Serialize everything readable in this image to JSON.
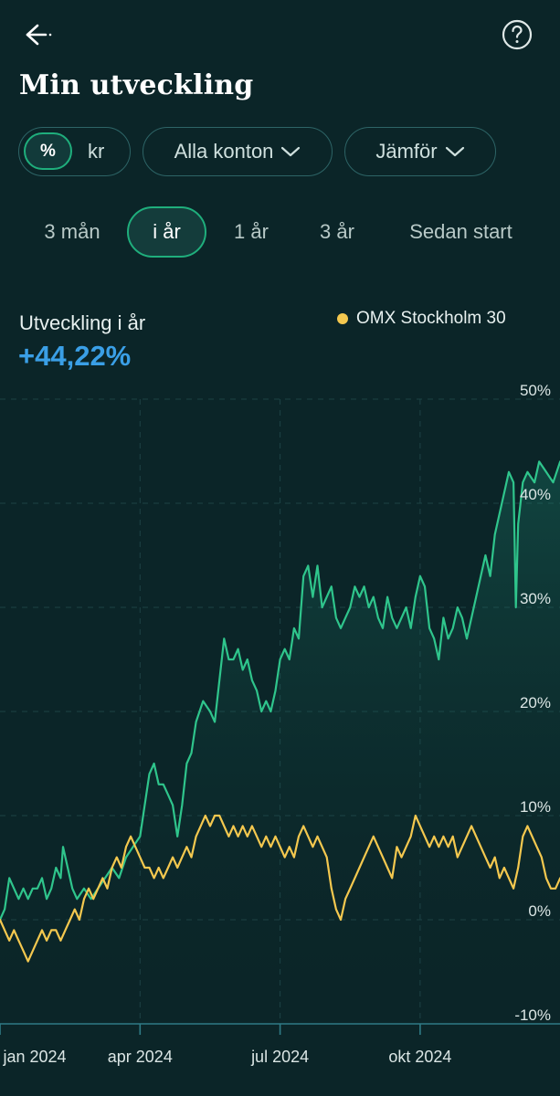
{
  "header": {
    "back_icon": "arrow-left-icon",
    "help_icon": "question-circle-icon",
    "title": "Min utveckling"
  },
  "filters": {
    "unit_toggle": {
      "options": [
        "%",
        "kr"
      ],
      "selected": "%"
    },
    "accounts_label": "Alla konton",
    "compare_label": "Jämför"
  },
  "ranges": {
    "items": [
      "3 mån",
      "i år",
      "1 år",
      "3 år",
      "Sedan start"
    ],
    "selected": "i år"
  },
  "summary": {
    "label": "Utveckling i år",
    "value": "+44,22%"
  },
  "legend": {
    "benchmark_name": "OMX Stockholm 30",
    "benchmark_color": "#f4c84f"
  },
  "colors": {
    "background": "#0b2528",
    "accent": "#1fae7c",
    "portfolio_line": "#2fc58c",
    "benchmark_line": "#f4c84f",
    "value_blue": "#3a9fe6"
  },
  "chart_data": {
    "type": "line",
    "title": "Utveckling i år",
    "ylabel": "%",
    "ylim": [
      -10,
      50
    ],
    "yticks": [
      -10,
      0,
      10,
      20,
      30,
      40,
      50
    ],
    "ytick_labels": [
      "-10%",
      "0%",
      "10%",
      "20%",
      "30%",
      "40%",
      "50%"
    ],
    "x_domain": [
      0,
      12
    ],
    "xticks": [
      {
        "month": 0,
        "label": "jan 2024"
      },
      {
        "month": 3,
        "label": "apr 2024"
      },
      {
        "month": 6,
        "label": "jul 2024"
      },
      {
        "month": 9,
        "label": "okt 2024"
      }
    ],
    "series": [
      {
        "name": "Min utveckling",
        "color": "#2fc58c",
        "points": [
          [
            0,
            0
          ],
          [
            0.1,
            1
          ],
          [
            0.2,
            4
          ],
          [
            0.3,
            3
          ],
          [
            0.4,
            2
          ],
          [
            0.5,
            3
          ],
          [
            0.6,
            2
          ],
          [
            0.7,
            3
          ],
          [
            0.8,
            3
          ],
          [
            0.9,
            4
          ],
          [
            1.0,
            2
          ],
          [
            1.1,
            3
          ],
          [
            1.2,
            5
          ],
          [
            1.3,
            4
          ],
          [
            1.35,
            7
          ],
          [
            1.45,
            5
          ],
          [
            1.55,
            3
          ],
          [
            1.65,
            2
          ],
          [
            1.8,
            3
          ],
          [
            1.95,
            2
          ],
          [
            2.1,
            3
          ],
          [
            2.25,
            4
          ],
          [
            2.4,
            5
          ],
          [
            2.55,
            4
          ],
          [
            2.7,
            6
          ],
          [
            2.85,
            7
          ],
          [
            3.0,
            8
          ],
          [
            3.1,
            11
          ],
          [
            3.2,
            14
          ],
          [
            3.3,
            15
          ],
          [
            3.4,
            13
          ],
          [
            3.5,
            13
          ],
          [
            3.6,
            12
          ],
          [
            3.7,
            11
          ],
          [
            3.8,
            8
          ],
          [
            3.9,
            11
          ],
          [
            4.0,
            15
          ],
          [
            4.1,
            16
          ],
          [
            4.2,
            19
          ],
          [
            4.35,
            21
          ],
          [
            4.5,
            20
          ],
          [
            4.6,
            19
          ],
          [
            4.7,
            23
          ],
          [
            4.8,
            27
          ],
          [
            4.9,
            25
          ],
          [
            5.0,
            25
          ],
          [
            5.1,
            26
          ],
          [
            5.2,
            24
          ],
          [
            5.3,
            25
          ],
          [
            5.4,
            23
          ],
          [
            5.5,
            22
          ],
          [
            5.6,
            20
          ],
          [
            5.7,
            21
          ],
          [
            5.8,
            20
          ],
          [
            5.9,
            22
          ],
          [
            6.0,
            25
          ],
          [
            6.1,
            26
          ],
          [
            6.2,
            25
          ],
          [
            6.3,
            28
          ],
          [
            6.4,
            27
          ],
          [
            6.5,
            33
          ],
          [
            6.6,
            34
          ],
          [
            6.7,
            31
          ],
          [
            6.8,
            34
          ],
          [
            6.9,
            30
          ],
          [
            7.0,
            31
          ],
          [
            7.1,
            32
          ],
          [
            7.2,
            29
          ],
          [
            7.3,
            28
          ],
          [
            7.4,
            29
          ],
          [
            7.5,
            30
          ],
          [
            7.6,
            32
          ],
          [
            7.7,
            31
          ],
          [
            7.8,
            32
          ],
          [
            7.9,
            30
          ],
          [
            8.0,
            31
          ],
          [
            8.1,
            29
          ],
          [
            8.2,
            28
          ],
          [
            8.3,
            31
          ],
          [
            8.4,
            29
          ],
          [
            8.5,
            28
          ],
          [
            8.6,
            29
          ],
          [
            8.7,
            30
          ],
          [
            8.8,
            28
          ],
          [
            8.9,
            31
          ],
          [
            9.0,
            33
          ],
          [
            9.1,
            32
          ],
          [
            9.2,
            28
          ],
          [
            9.3,
            27
          ],
          [
            9.4,
            25
          ],
          [
            9.5,
            29
          ],
          [
            9.6,
            27
          ],
          [
            9.7,
            28
          ],
          [
            9.8,
            30
          ],
          [
            9.9,
            29
          ],
          [
            10.0,
            27
          ],
          [
            10.1,
            29
          ],
          [
            10.2,
            31
          ],
          [
            10.3,
            33
          ],
          [
            10.4,
            35
          ],
          [
            10.5,
            33
          ],
          [
            10.6,
            37
          ],
          [
            10.7,
            39
          ],
          [
            10.8,
            41
          ],
          [
            10.9,
            43
          ],
          [
            11.0,
            42
          ],
          [
            11.05,
            30
          ],
          [
            11.1,
            38
          ],
          [
            11.2,
            42
          ],
          [
            11.3,
            43
          ],
          [
            11.45,
            42
          ],
          [
            11.55,
            44
          ],
          [
            11.7,
            43
          ],
          [
            11.85,
            42
          ],
          [
            12.0,
            44
          ]
        ]
      },
      {
        "name": "OMX Stockholm 30",
        "color": "#f4c84f",
        "points": [
          [
            0,
            0
          ],
          [
            0.1,
            -1
          ],
          [
            0.2,
            -2
          ],
          [
            0.3,
            -1
          ],
          [
            0.4,
            -2
          ],
          [
            0.5,
            -3
          ],
          [
            0.6,
            -4
          ],
          [
            0.7,
            -3
          ],
          [
            0.8,
            -2
          ],
          [
            0.9,
            -1
          ],
          [
            1.0,
            -2
          ],
          [
            1.1,
            -1
          ],
          [
            1.2,
            -1
          ],
          [
            1.3,
            -2
          ],
          [
            1.4,
            -1
          ],
          [
            1.5,
            0
          ],
          [
            1.6,
            1
          ],
          [
            1.7,
            0
          ],
          [
            1.8,
            2
          ],
          [
            1.9,
            3
          ],
          [
            2.0,
            2
          ],
          [
            2.1,
            3
          ],
          [
            2.2,
            4
          ],
          [
            2.3,
            3
          ],
          [
            2.4,
            5
          ],
          [
            2.5,
            6
          ],
          [
            2.6,
            5
          ],
          [
            2.7,
            7
          ],
          [
            2.8,
            8
          ],
          [
            2.9,
            7
          ],
          [
            3.0,
            6
          ],
          [
            3.1,
            5
          ],
          [
            3.2,
            5
          ],
          [
            3.3,
            4
          ],
          [
            3.4,
            5
          ],
          [
            3.5,
            4
          ],
          [
            3.6,
            5
          ],
          [
            3.7,
            6
          ],
          [
            3.8,
            5
          ],
          [
            3.9,
            6
          ],
          [
            4.0,
            7
          ],
          [
            4.1,
            6
          ],
          [
            4.2,
            8
          ],
          [
            4.3,
            9
          ],
          [
            4.4,
            10
          ],
          [
            4.5,
            9
          ],
          [
            4.6,
            10
          ],
          [
            4.7,
            10
          ],
          [
            4.8,
            9
          ],
          [
            4.9,
            8
          ],
          [
            5.0,
            9
          ],
          [
            5.1,
            8
          ],
          [
            5.2,
            9
          ],
          [
            5.3,
            8
          ],
          [
            5.4,
            9
          ],
          [
            5.5,
            8
          ],
          [
            5.6,
            7
          ],
          [
            5.7,
            8
          ],
          [
            5.8,
            7
          ],
          [
            5.9,
            8
          ],
          [
            6.0,
            7
          ],
          [
            6.1,
            6
          ],
          [
            6.2,
            7
          ],
          [
            6.3,
            6
          ],
          [
            6.4,
            8
          ],
          [
            6.5,
            9
          ],
          [
            6.6,
            8
          ],
          [
            6.7,
            7
          ],
          [
            6.8,
            8
          ],
          [
            6.9,
            7
          ],
          [
            7.0,
            6
          ],
          [
            7.1,
            3
          ],
          [
            7.2,
            1
          ],
          [
            7.3,
            0
          ],
          [
            7.4,
            2
          ],
          [
            7.5,
            3
          ],
          [
            7.6,
            4
          ],
          [
            7.7,
            5
          ],
          [
            7.8,
            6
          ],
          [
            7.9,
            7
          ],
          [
            8.0,
            8
          ],
          [
            8.1,
            7
          ],
          [
            8.2,
            6
          ],
          [
            8.3,
            5
          ],
          [
            8.4,
            4
          ],
          [
            8.5,
            7
          ],
          [
            8.6,
            6
          ],
          [
            8.7,
            7
          ],
          [
            8.8,
            8
          ],
          [
            8.9,
            10
          ],
          [
            9.0,
            9
          ],
          [
            9.1,
            8
          ],
          [
            9.2,
            7
          ],
          [
            9.3,
            8
          ],
          [
            9.4,
            7
          ],
          [
            9.5,
            8
          ],
          [
            9.6,
            7
          ],
          [
            9.7,
            8
          ],
          [
            9.8,
            6
          ],
          [
            9.9,
            7
          ],
          [
            10.0,
            8
          ],
          [
            10.1,
            9
          ],
          [
            10.2,
            8
          ],
          [
            10.3,
            7
          ],
          [
            10.4,
            6
          ],
          [
            10.5,
            5
          ],
          [
            10.6,
            6
          ],
          [
            10.7,
            4
          ],
          [
            10.8,
            5
          ],
          [
            10.9,
            4
          ],
          [
            11.0,
            3
          ],
          [
            11.1,
            5
          ],
          [
            11.2,
            8
          ],
          [
            11.3,
            9
          ],
          [
            11.4,
            8
          ],
          [
            11.5,
            7
          ],
          [
            11.6,
            6
          ],
          [
            11.7,
            4
          ],
          [
            11.8,
            3
          ],
          [
            11.9,
            3
          ],
          [
            12.0,
            4
          ]
        ]
      }
    ]
  }
}
